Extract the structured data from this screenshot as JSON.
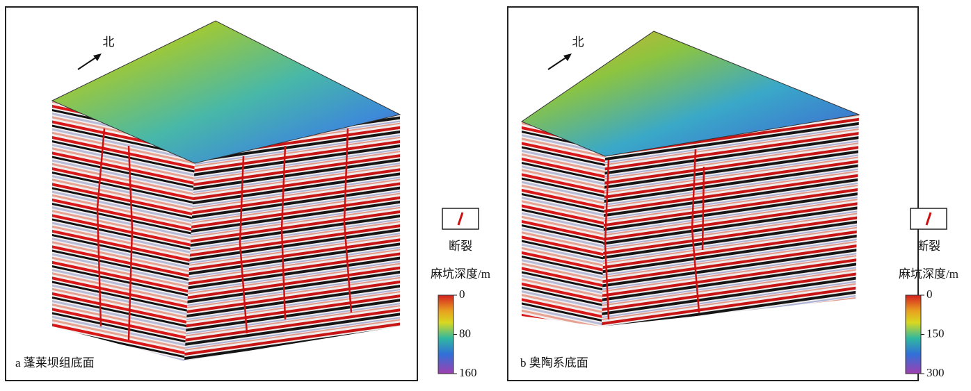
{
  "panels": [
    {
      "north": "北",
      "caption": "a 蓬莱坝组底面",
      "legend": {
        "fault": "断裂",
        "depth_title": "麻坑深度/m",
        "lim": [
          0,
          160
        ],
        "ticks": [
          0,
          80,
          160
        ]
      }
    },
    {
      "north": "北",
      "caption": "b 奥陶系底面",
      "legend": {
        "fault": "断裂",
        "depth_title": "麻坑深度/m",
        "lim": [
          0,
          300
        ],
        "ticks": [
          0,
          150,
          300
        ]
      }
    }
  ]
}
